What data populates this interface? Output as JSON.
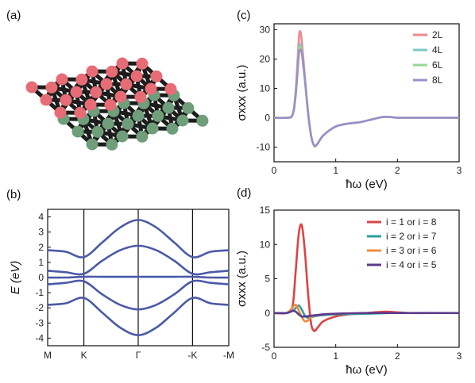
{
  "panels": {
    "a": "(a)",
    "b": "(b)",
    "c": "(c)",
    "d": "(d)"
  },
  "chart_data": [
    {
      "panel": "(b)",
      "type": "line",
      "ylabel": "E (eV)",
      "ylim": [
        -4.5,
        4.5
      ],
      "yticks": [
        4,
        3,
        2,
        1,
        0,
        -1,
        -2,
        -3,
        -4
      ],
      "kpoints": [
        "M",
        "K",
        "Γ",
        "-K",
        "-M"
      ],
      "kpositions": [
        0,
        1,
        2.5,
        4,
        5
      ],
      "color": "#4a5aa8",
      "series": [
        {
          "x": [
            0,
            0.5,
            1,
            1.5,
            2,
            2.5,
            3,
            3.5,
            4,
            4.5,
            5
          ],
          "values": [
            1.8,
            1.7,
            1.35,
            2.3,
            3.3,
            3.8,
            3.3,
            2.3,
            1.35,
            1.7,
            1.8
          ]
        },
        {
          "x": [
            0,
            0.5,
            1,
            1.5,
            2,
            2.5,
            3,
            3.5,
            4,
            4.5,
            5
          ],
          "values": [
            0.45,
            0.35,
            0.25,
            1.1,
            1.8,
            2.1,
            1.8,
            1.1,
            0.25,
            0.35,
            0.45
          ]
        },
        {
          "x": [
            0,
            0.5,
            1,
            1.5,
            2,
            2.5,
            3,
            3.5,
            4,
            4.5,
            5
          ],
          "values": [
            0.0,
            0.0,
            0.05,
            0.05,
            0.05,
            0.05,
            0.05,
            0.05,
            0.05,
            0.0,
            0.0
          ]
        },
        {
          "x": [
            0,
            0.5,
            1,
            1.5,
            2,
            2.5,
            3,
            3.5,
            4,
            4.5,
            5
          ],
          "values": [
            -0.45,
            -0.35,
            -0.25,
            -1.1,
            -1.8,
            -2.1,
            -1.8,
            -1.1,
            -0.25,
            -0.35,
            -0.45
          ]
        },
        {
          "x": [
            0,
            0.5,
            1,
            1.5,
            2,
            2.5,
            3,
            3.5,
            4,
            4.5,
            5
          ],
          "values": [
            -1.8,
            -1.7,
            -1.35,
            -2.3,
            -3.3,
            -3.8,
            -3.3,
            -2.3,
            -1.35,
            -1.7,
            -1.8
          ]
        }
      ]
    },
    {
      "panel": "(c)",
      "type": "line",
      "xlabel": "ħω (eV)",
      "ylabel": "σxxx (a.u.)",
      "xlim": [
        0,
        3
      ],
      "ylim": [
        -15,
        32
      ],
      "xticks": [
        0,
        1,
        2,
        3
      ],
      "yticks": [
        30,
        20,
        10,
        0,
        -10
      ],
      "legend_position": "top-right",
      "series": [
        {
          "name": "2L",
          "color": "#ee8a8a",
          "x": [
            0,
            0.2,
            0.3,
            0.35,
            0.4,
            0.42,
            0.45,
            0.5,
            0.55,
            0.6,
            0.65,
            0.7,
            0.8,
            1.0,
            1.2,
            1.4,
            1.6,
            1.7,
            1.8,
            1.9,
            2.0,
            2.2,
            2.5,
            3.0
          ],
          "values": [
            0,
            0,
            1,
            9,
            26,
            29.5,
            26,
            14,
            2,
            -6,
            -9.5,
            -9,
            -6,
            -3,
            -2,
            -1.5,
            -0.5,
            0,
            0.3,
            0.2,
            0,
            0,
            0,
            0
          ]
        },
        {
          "name": "4L",
          "color": "#7fc8c8",
          "x": [
            0,
            0.2,
            0.3,
            0.35,
            0.4,
            0.42,
            0.45,
            0.5,
            0.55,
            0.6,
            0.65,
            0.7,
            0.8,
            1.0,
            1.2,
            1.4,
            1.6,
            1.7,
            1.8,
            1.9,
            2.0,
            2.2,
            2.5,
            3.0
          ],
          "values": [
            0,
            0,
            1,
            8,
            22,
            25,
            23,
            13,
            2,
            -6,
            -9.5,
            -9,
            -6,
            -3,
            -2,
            -1.5,
            -0.5,
            0,
            0.3,
            0.2,
            0,
            0,
            0,
            0
          ]
        },
        {
          "name": "6L",
          "color": "#98d698",
          "x": [
            0,
            0.2,
            0.3,
            0.35,
            0.4,
            0.42,
            0.45,
            0.5,
            0.55,
            0.6,
            0.65,
            0.7,
            0.8,
            1.0,
            1.2,
            1.4,
            1.6,
            1.7,
            1.8,
            1.9,
            2.0,
            2.2,
            2.5,
            3.0
          ],
          "values": [
            0,
            0,
            1,
            8,
            21.5,
            24,
            22.5,
            13,
            2,
            -6,
            -9.5,
            -9,
            -6,
            -3,
            -2,
            -1.5,
            -0.5,
            0,
            0.3,
            0.2,
            0,
            0,
            0,
            0
          ]
        },
        {
          "name": "8L",
          "color": "#9d8ec8",
          "x": [
            0,
            0.2,
            0.3,
            0.35,
            0.4,
            0.42,
            0.45,
            0.5,
            0.55,
            0.6,
            0.65,
            0.7,
            0.8,
            1.0,
            1.2,
            1.4,
            1.6,
            1.7,
            1.8,
            1.9,
            2.0,
            2.2,
            2.5,
            3.0
          ],
          "values": [
            0,
            0,
            1,
            7.5,
            21,
            23,
            22,
            13,
            2,
            -6,
            -9.5,
            -9,
            -6,
            -3,
            -2,
            -1.5,
            -0.5,
            0,
            0.3,
            0.2,
            0,
            0,
            0,
            0
          ]
        }
      ]
    },
    {
      "panel": "(d)",
      "type": "line",
      "xlabel": "ħω (eV)",
      "ylabel": "σxxx (a.u.)",
      "xlim": [
        0,
        3
      ],
      "ylim": [
        -5,
        15
      ],
      "xticks": [
        0,
        1,
        2,
        3
      ],
      "yticks": [
        15,
        10,
        5,
        0,
        -5
      ],
      "legend_position": "top-right",
      "series": [
        {
          "name": "i = 1 or i = 8",
          "color": "#d94545",
          "x": [
            0,
            0.2,
            0.3,
            0.35,
            0.4,
            0.45,
            0.5,
            0.55,
            0.6,
            0.65,
            0.7,
            0.8,
            1.0,
            1.2,
            1.5,
            1.8,
            2.0,
            2.2,
            2.5,
            3.0
          ],
          "values": [
            0,
            0,
            1,
            6,
            11.5,
            12.8,
            9,
            3,
            -1.5,
            -2.6,
            -2.2,
            -1.2,
            -0.5,
            -0.2,
            0,
            0.2,
            0.1,
            0,
            0,
            0
          ]
        },
        {
          "name": "i = 2 or i = 7",
          "color": "#2f9e9e",
          "x": [
            0,
            0.2,
            0.3,
            0.35,
            0.4,
            0.45,
            0.5,
            0.55,
            0.6,
            0.7,
            0.8,
            1.0,
            1.5,
            2.0,
            3.0
          ],
          "values": [
            0,
            0,
            0.3,
            0.7,
            1.1,
            0.5,
            -0.4,
            -0.7,
            -0.6,
            -0.4,
            -0.3,
            -0.2,
            -0.1,
            0,
            0
          ]
        },
        {
          "name": "i = 3 or i = 6",
          "color": "#f08c3c",
          "x": [
            0,
            0.2,
            0.3,
            0.35,
            0.4,
            0.45,
            0.5,
            0.55,
            0.6,
            0.7,
            0.8,
            1.0,
            1.5,
            2.0,
            3.0
          ],
          "values": [
            0,
            0,
            0.8,
            1.2,
            0.4,
            -0.6,
            -1.2,
            -1.1,
            -0.6,
            -0.3,
            -0.2,
            -0.1,
            0,
            0,
            0
          ]
        },
        {
          "name": "i = 4 or i = 5",
          "color": "#5a3a8c",
          "x": [
            0,
            0.2,
            0.3,
            0.35,
            0.4,
            0.45,
            0.5,
            0.6,
            0.7,
            0.8,
            1.0,
            1.5,
            2.0,
            3.0
          ],
          "values": [
            0,
            0,
            0.3,
            0.2,
            -0.2,
            -0.5,
            -0.5,
            -0.4,
            -0.3,
            -0.2,
            -0.1,
            0,
            0,
            0
          ]
        }
      ]
    }
  ]
}
